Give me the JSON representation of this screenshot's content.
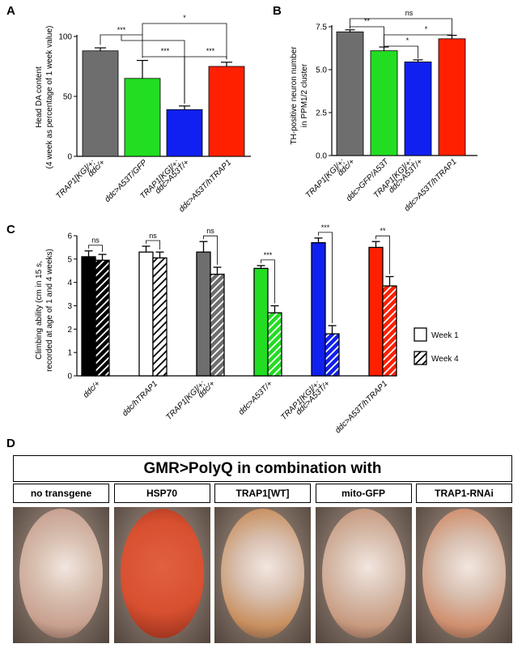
{
  "panels": {
    "A": {
      "letter": "A",
      "chart_data": {
        "type": "bar",
        "ylabel_line1": "Head DA content",
        "ylabel_line2": "(4 week as percentage of 1 week value)",
        "ylim": [
          0,
          100
        ],
        "yticks": [
          "0",
          "50",
          "100"
        ],
        "categories": [
          [
            "TRAP1[KG]/+;",
            "ddc/+"
          ],
          [
            "ddc>A53T/GFP"
          ],
          [
            "TRAP1[KG]/+;",
            "ddc>A53T/+"
          ],
          [
            "ddc>A53T/hTRAP1"
          ]
        ],
        "values": [
          88,
          65,
          39,
          75
        ],
        "errors": [
          2.5,
          15,
          3,
          3.5
        ],
        "colors": [
          "#6e6e6e",
          "#22dd22",
          "#1020f0",
          "#ff2000"
        ],
        "significance": [
          {
            "from": [
              0,
              1
            ],
            "to": 2,
            "label": "***"
          },
          {
            "from": [
              1
            ],
            "to": 3,
            "label": "*"
          },
          {
            "from": [
              1
            ],
            "to": 2,
            "label": "***"
          },
          {
            "from": [
              2
            ],
            "to": 3,
            "label": "***"
          }
        ]
      }
    },
    "B": {
      "letter": "B",
      "chart_data": {
        "type": "bar",
        "ylabel_line1": "TH-positive neuron number",
        "ylabel_line2": "in PPM1/2 cluster",
        "ylim": [
          0,
          7.5
        ],
        "yticks": [
          "0.0",
          "2.5",
          "5.0",
          "7.5"
        ],
        "categories": [
          [
            "TRAP1[KG]/+;",
            "ddc/+"
          ],
          [
            "ddc>GFP/A53T"
          ],
          [
            "TRAP1[KG]/+;",
            "ddc>A53T/+"
          ],
          [
            "ddc>A53T/hTRAP1"
          ]
        ],
        "values": [
          7.2,
          6.1,
          5.45,
          6.8
        ],
        "errors": [
          0.12,
          0.22,
          0.12,
          0.2
        ],
        "colors": [
          "#6e6e6e",
          "#22dd22",
          "#1020f0",
          "#ff2000"
        ],
        "significance": [
          {
            "a": 0,
            "b": 1,
            "label": "**"
          },
          {
            "a": 1,
            "b": 2,
            "label": "*"
          },
          {
            "a": 2,
            "b": 3,
            "label": "*"
          },
          {
            "a": 0,
            "b": 3,
            "label": "ns"
          }
        ]
      }
    },
    "C": {
      "letter": "C",
      "chart_data": {
        "type": "bar",
        "ylabel_line1": "Climbing ability (cm in 15 s,",
        "ylabel_line2": "recorded at age of 1 and 4 weeks)",
        "ylim": [
          0,
          6
        ],
        "yticks": [
          "0",
          "1",
          "2",
          "3",
          "4",
          "5",
          "6"
        ],
        "categories": [
          [
            "ddc/+"
          ],
          [
            "ddc/hTRAP1"
          ],
          [
            "TRAP1[KG]/+;",
            "ddc/+"
          ],
          [
            "ddc>A53T/+"
          ],
          [
            "TRAP1[KG]/+;",
            "ddc>A53T/+"
          ],
          [
            "ddc>A53T/hTRAP1"
          ]
        ],
        "colors": [
          "#000000",
          "#ffffff",
          "#6e6e6e",
          "#22dd22",
          "#1020f0",
          "#ff2000"
        ],
        "series": [
          {
            "name": "Week 1",
            "values": [
              5.1,
              5.3,
              5.3,
              4.6,
              5.7,
              5.5
            ],
            "errors": [
              0.25,
              0.25,
              0.45,
              0.12,
              0.2,
              0.25
            ]
          },
          {
            "name": "Week 4",
            "values": [
              4.95,
              5.05,
              4.35,
              2.7,
              1.8,
              3.85
            ],
            "errors": [
              0.25,
              0.25,
              0.3,
              0.3,
              0.35,
              0.4
            ]
          }
        ],
        "significance": [
          "ns",
          "ns",
          "ns",
          "***",
          "***",
          "**"
        ],
        "legend_position": "right"
      }
    },
    "D": {
      "letter": "D",
      "title": "GMR>PolyQ in combination with",
      "eyes": [
        {
          "label": "no transgene",
          "color": "#c8a090"
        },
        {
          "label": "HSP70",
          "color": "#d85030"
        },
        {
          "label": "TRAP1[WT]",
          "color": "#c89060"
        },
        {
          "label": "mito-GFP",
          "color": "#c89a80"
        },
        {
          "label": "TRAP1-RNAi",
          "color": "#d09070"
        }
      ]
    }
  }
}
